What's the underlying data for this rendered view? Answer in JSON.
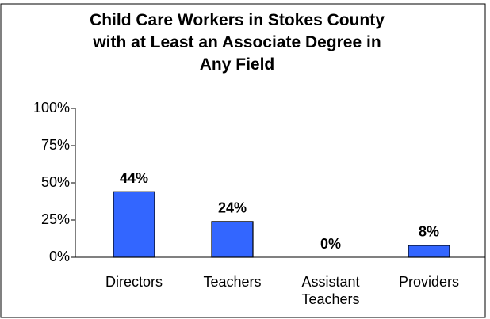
{
  "chart_data": {
    "type": "bar",
    "title": "Child Care Workers in Stokes County with at Least an Associate Degree in Any Field",
    "categories": [
      "Directors",
      "Teachers",
      "Assistant Teachers",
      "Providers"
    ],
    "values": [
      44,
      24,
      0,
      8
    ],
    "value_labels": [
      "44%",
      "24%",
      "0%",
      "8%"
    ],
    "color": "#3366ff",
    "ylim": [
      0,
      100
    ],
    "yticks": [
      {
        "value": 0,
        "label": "0%"
      },
      {
        "value": 25,
        "label": "25%"
      },
      {
        "value": 50,
        "label": "50%"
      },
      {
        "value": 75,
        "label": "75%"
      },
      {
        "value": 100,
        "label": "100%"
      }
    ],
    "grid": false
  }
}
